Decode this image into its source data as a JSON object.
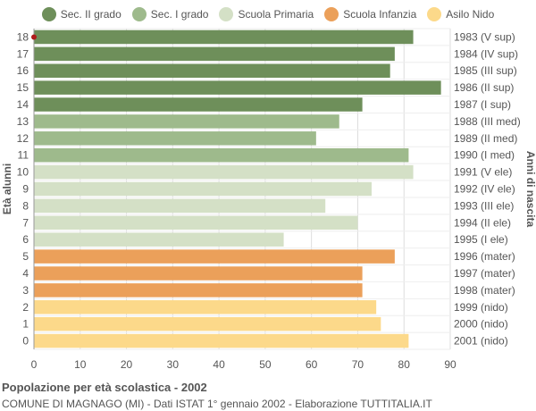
{
  "legend": [
    {
      "label": "Sec. II grado",
      "color": "#6e8f5a"
    },
    {
      "label": "Sec. I grado",
      "color": "#9eba8c"
    },
    {
      "label": "Scuola Primaria",
      "color": "#d4e0c6"
    },
    {
      "label": "Scuola Infanzia",
      "color": "#eba05a"
    },
    {
      "label": "Asilo Nido",
      "color": "#fcd98a"
    }
  ],
  "chart_data": {
    "type": "bar",
    "orientation": "horizontal",
    "ylabel": "Età alunni",
    "ylabel_right": "Anni di nascita",
    "xlim": [
      0,
      90
    ],
    "xticks": [
      0,
      10,
      20,
      30,
      40,
      50,
      60,
      70,
      80,
      90
    ],
    "grid": true,
    "legend_position": "top",
    "bars": [
      {
        "age": "18",
        "birth": "1983 (V sup)",
        "value": 82,
        "color": "#6e8f5a"
      },
      {
        "age": "17",
        "birth": "1984 (IV sup)",
        "value": 78,
        "color": "#6e8f5a"
      },
      {
        "age": "16",
        "birth": "1985 (III sup)",
        "value": 77,
        "color": "#6e8f5a"
      },
      {
        "age": "15",
        "birth": "1986 (II sup)",
        "value": 88,
        "color": "#6e8f5a"
      },
      {
        "age": "14",
        "birth": "1987 (I sup)",
        "value": 71,
        "color": "#6e8f5a"
      },
      {
        "age": "13",
        "birth": "1988 (III med)",
        "value": 66,
        "color": "#9eba8c"
      },
      {
        "age": "12",
        "birth": "1989 (II med)",
        "value": 61,
        "color": "#9eba8c"
      },
      {
        "age": "11",
        "birth": "1990 (I med)",
        "value": 81,
        "color": "#9eba8c"
      },
      {
        "age": "10",
        "birth": "1991 (V ele)",
        "value": 82,
        "color": "#d4e0c6"
      },
      {
        "age": "9",
        "birth": "1992 (IV ele)",
        "value": 73,
        "color": "#d4e0c6"
      },
      {
        "age": "8",
        "birth": "1993 (III ele)",
        "value": 63,
        "color": "#d4e0c6"
      },
      {
        "age": "7",
        "birth": "1994 (II ele)",
        "value": 70,
        "color": "#d4e0c6"
      },
      {
        "age": "6",
        "birth": "1995 (I ele)",
        "value": 54,
        "color": "#d4e0c6"
      },
      {
        "age": "5",
        "birth": "1996 (mater)",
        "value": 78,
        "color": "#eba05a"
      },
      {
        "age": "4",
        "birth": "1997 (mater)",
        "value": 71,
        "color": "#eba05a"
      },
      {
        "age": "3",
        "birth": "1998 (mater)",
        "value": 71,
        "color": "#eba05a"
      },
      {
        "age": "2",
        "birth": "1999 (nido)",
        "value": 74,
        "color": "#fcd98a"
      },
      {
        "age": "1",
        "birth": "2000 (nido)",
        "value": 75,
        "color": "#fcd98a"
      },
      {
        "age": "0",
        "birth": "2001 (nido)",
        "value": 81,
        "color": "#fcd98a"
      }
    ]
  },
  "footer": {
    "title": "Popolazione per età scolastica - 2002",
    "subtitle": "COMUNE DI MAGNAGO (MI) - Dati ISTAT 1° gennaio 2002 - Elaborazione TUTTITALIA.IT"
  }
}
